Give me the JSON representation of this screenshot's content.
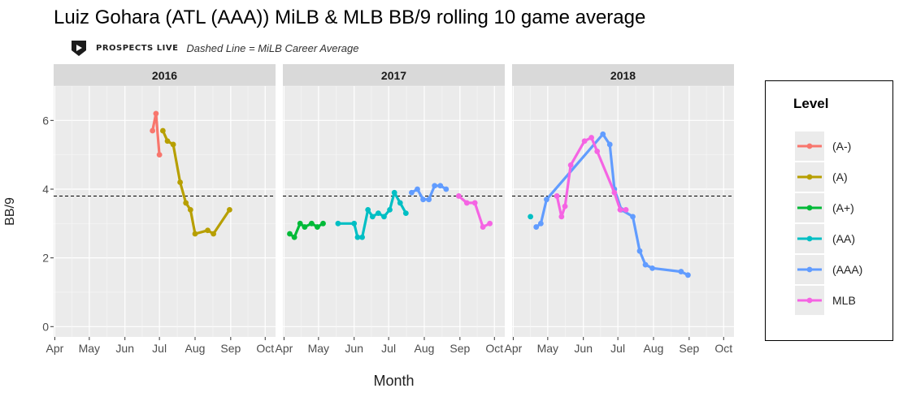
{
  "title": "Luiz Gohara (ATL (AAA)) MiLB & MLB BB/9 rolling 10 game average",
  "subtitle": "Dashed Line = MiLB Career Average",
  "brand": {
    "name": "PROSPECTS LIVE",
    "icon": "play-shield-icon"
  },
  "legend": {
    "title": "Level",
    "items": [
      {
        "label": "(A-)",
        "color": "#F8766D"
      },
      {
        "label": "(A)",
        "color": "#B79F00"
      },
      {
        "label": "(A+)",
        "color": "#00BA38"
      },
      {
        "label": "(AA)",
        "color": "#00BFC4"
      },
      {
        "label": "(AAA)",
        "color": "#619CFF"
      },
      {
        "label": "MLB",
        "color": "#F564E3"
      }
    ]
  },
  "chart_data": {
    "type": "line",
    "xlabel": "Month",
    "ylabel": "BB/9",
    "ylim": [
      -0.3,
      7.0
    ],
    "yticks": [
      0,
      2,
      4,
      6
    ],
    "xticks": [
      "Apr",
      "May",
      "Jun",
      "Jul",
      "Aug",
      "Sep",
      "Oct"
    ],
    "x_domain": [
      "Mar 31",
      "Oct 10"
    ],
    "reference_line": {
      "y": 3.8,
      "style": "dashed",
      "label": "MiLB Career Average"
    },
    "panel_background": "#EBEBEB",
    "strip_background": "#D9D9D9",
    "grid": true,
    "legend_position": "right",
    "panels": [
      {
        "year": "2016",
        "series": [
          {
            "name": "(A-)",
            "points": [
              [
                "Jun 25",
                5.7
              ],
              [
                "Jun 28",
                6.2
              ],
              [
                "Jul 1",
                5.0
              ]
            ]
          },
          {
            "name": "(A)",
            "points": [
              [
                "Jul 4",
                5.7
              ],
              [
                "Jul 8",
                5.4
              ],
              [
                "Jul 13",
                5.3
              ],
              [
                "Jul 19",
                4.2
              ],
              [
                "Jul 24",
                3.6
              ],
              [
                "Jul 28",
                3.4
              ],
              [
                "Aug 1",
                2.7
              ],
              [
                "Aug 12",
                2.8
              ],
              [
                "Aug 17",
                2.7
              ],
              [
                "Aug 31",
                3.4
              ]
            ]
          }
        ]
      },
      {
        "year": "2017",
        "series": [
          {
            "name": "(A+)",
            "points": [
              [
                "Apr 6",
                2.7
              ],
              [
                "Apr 10",
                2.6
              ],
              [
                "Apr 15",
                3.0
              ],
              [
                "Apr 19",
                2.9
              ],
              [
                "Apr 25",
                3.0
              ],
              [
                "Apr 30",
                2.9
              ],
              [
                "May 5",
                3.0
              ]
            ]
          },
          {
            "name": "(AA)",
            "points": [
              [
                "May 18",
                3.0
              ],
              [
                "Jun 1",
                3.0
              ],
              [
                "Jun 4",
                2.6
              ],
              [
                "Jun 8",
                2.6
              ],
              [
                "Jun 13",
                3.4
              ],
              [
                "Jun 17",
                3.2
              ],
              [
                "Jun 22",
                3.3
              ],
              [
                "Jun 27",
                3.2
              ],
              [
                "Jul 2",
                3.4
              ],
              [
                "Jul 6",
                3.9
              ],
              [
                "Jul 11",
                3.6
              ],
              [
                "Jul 16",
                3.3
              ]
            ]
          },
          {
            "name": "(AAA)",
            "points": [
              [
                "Jul 21",
                3.9
              ],
              [
                "Jul 26",
                4.0
              ],
              [
                "Jul 31",
                3.7
              ],
              [
                "Aug 5",
                3.7
              ],
              [
                "Aug 10",
                4.1
              ],
              [
                "Aug 15",
                4.1
              ],
              [
                "Aug 20",
                4.0
              ]
            ]
          },
          {
            "name": "MLB",
            "points": [
              [
                "Aug 31",
                3.8
              ],
              [
                "Sep 7",
                3.6
              ],
              [
                "Sep 14",
                3.6
              ],
              [
                "Sep 21",
                2.9
              ],
              [
                "Sep 27",
                3.0
              ]
            ]
          }
        ]
      },
      {
        "year": "2018",
        "series": [
          {
            "name": "(AA)",
            "points": [
              [
                "Apr 16",
                3.2
              ]
            ]
          },
          {
            "name": "(AAA)",
            "points": [
              [
                "Apr 21",
                2.9
              ],
              [
                "Apr 25",
                3.0
              ],
              [
                "Apr 30",
                3.7
              ],
              [
                "Jun 18",
                5.6
              ],
              [
                "Jun 24",
                5.3
              ],
              [
                "Jun 28",
                4.0
              ],
              [
                "Jul 4",
                3.4
              ],
              [
                "Jul 14",
                3.2
              ],
              [
                "Jul 20",
                2.2
              ],
              [
                "Jul 25",
                1.8
              ],
              [
                "Jul 31",
                1.7
              ],
              [
                "Aug 25",
                1.6
              ],
              [
                "Aug 31",
                1.5
              ]
            ]
          },
          {
            "name": "MLB",
            "points": [
              [
                "May 9",
                3.8
              ],
              [
                "May 13",
                3.2
              ],
              [
                "May 16",
                3.5
              ],
              [
                "May 21",
                4.7
              ],
              [
                "Jun 2",
                5.4
              ],
              [
                "Jun 8",
                5.5
              ],
              [
                "Jun 13",
                5.1
              ],
              [
                "Jun 28",
                3.9
              ],
              [
                "Jul 3",
                3.4
              ],
              [
                "Jul 8",
                3.4
              ]
            ]
          }
        ]
      }
    ]
  }
}
